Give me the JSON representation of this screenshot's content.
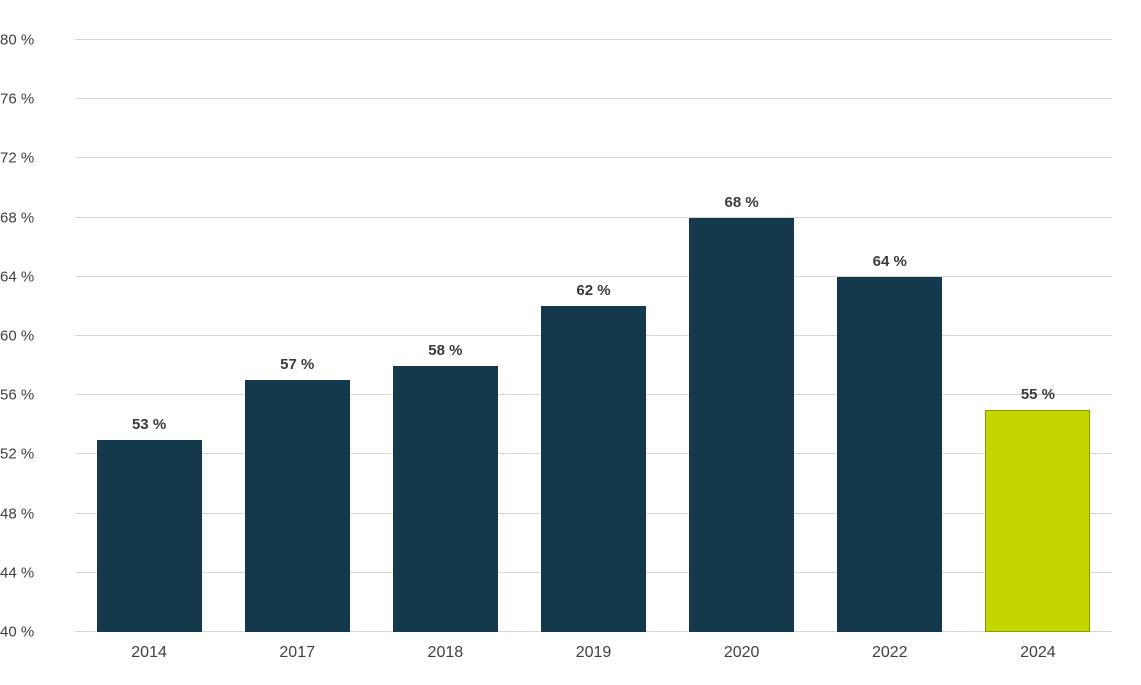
{
  "chart_data": {
    "type": "bar",
    "categories": [
      "2014",
      "2017",
      "2018",
      "2019",
      "2020",
      "2022",
      "2024"
    ],
    "values": [
      53,
      57,
      58,
      62,
      68,
      64,
      55
    ],
    "data_labels": [
      "53 %",
      "57 %",
      "58 %",
      "62 %",
      "68 %",
      "64 %",
      "55 %"
    ],
    "title": "",
    "xlabel": "",
    "ylabel": "",
    "ylim": [
      40,
      80
    ],
    "ytick_step": 4,
    "ytick_suffix": " %",
    "ytick_labels": [
      "40 %",
      "44 %",
      "48 %",
      "52 %",
      "56 %",
      "60 %",
      "64 %",
      "68 %",
      "72 %",
      "76 %",
      "80 %"
    ],
    "grid": true,
    "legend": "none",
    "colors": {
      "bar_default": "#14394c",
      "bar_highlight": "#c4d600",
      "bar_highlight_border": "#8a9b00",
      "gridline": "#d6d6d6",
      "tick_text": "#404040",
      "data_label_text": "#3b3b3b",
      "background": "#ffffff"
    },
    "highlight_index": 6
  }
}
